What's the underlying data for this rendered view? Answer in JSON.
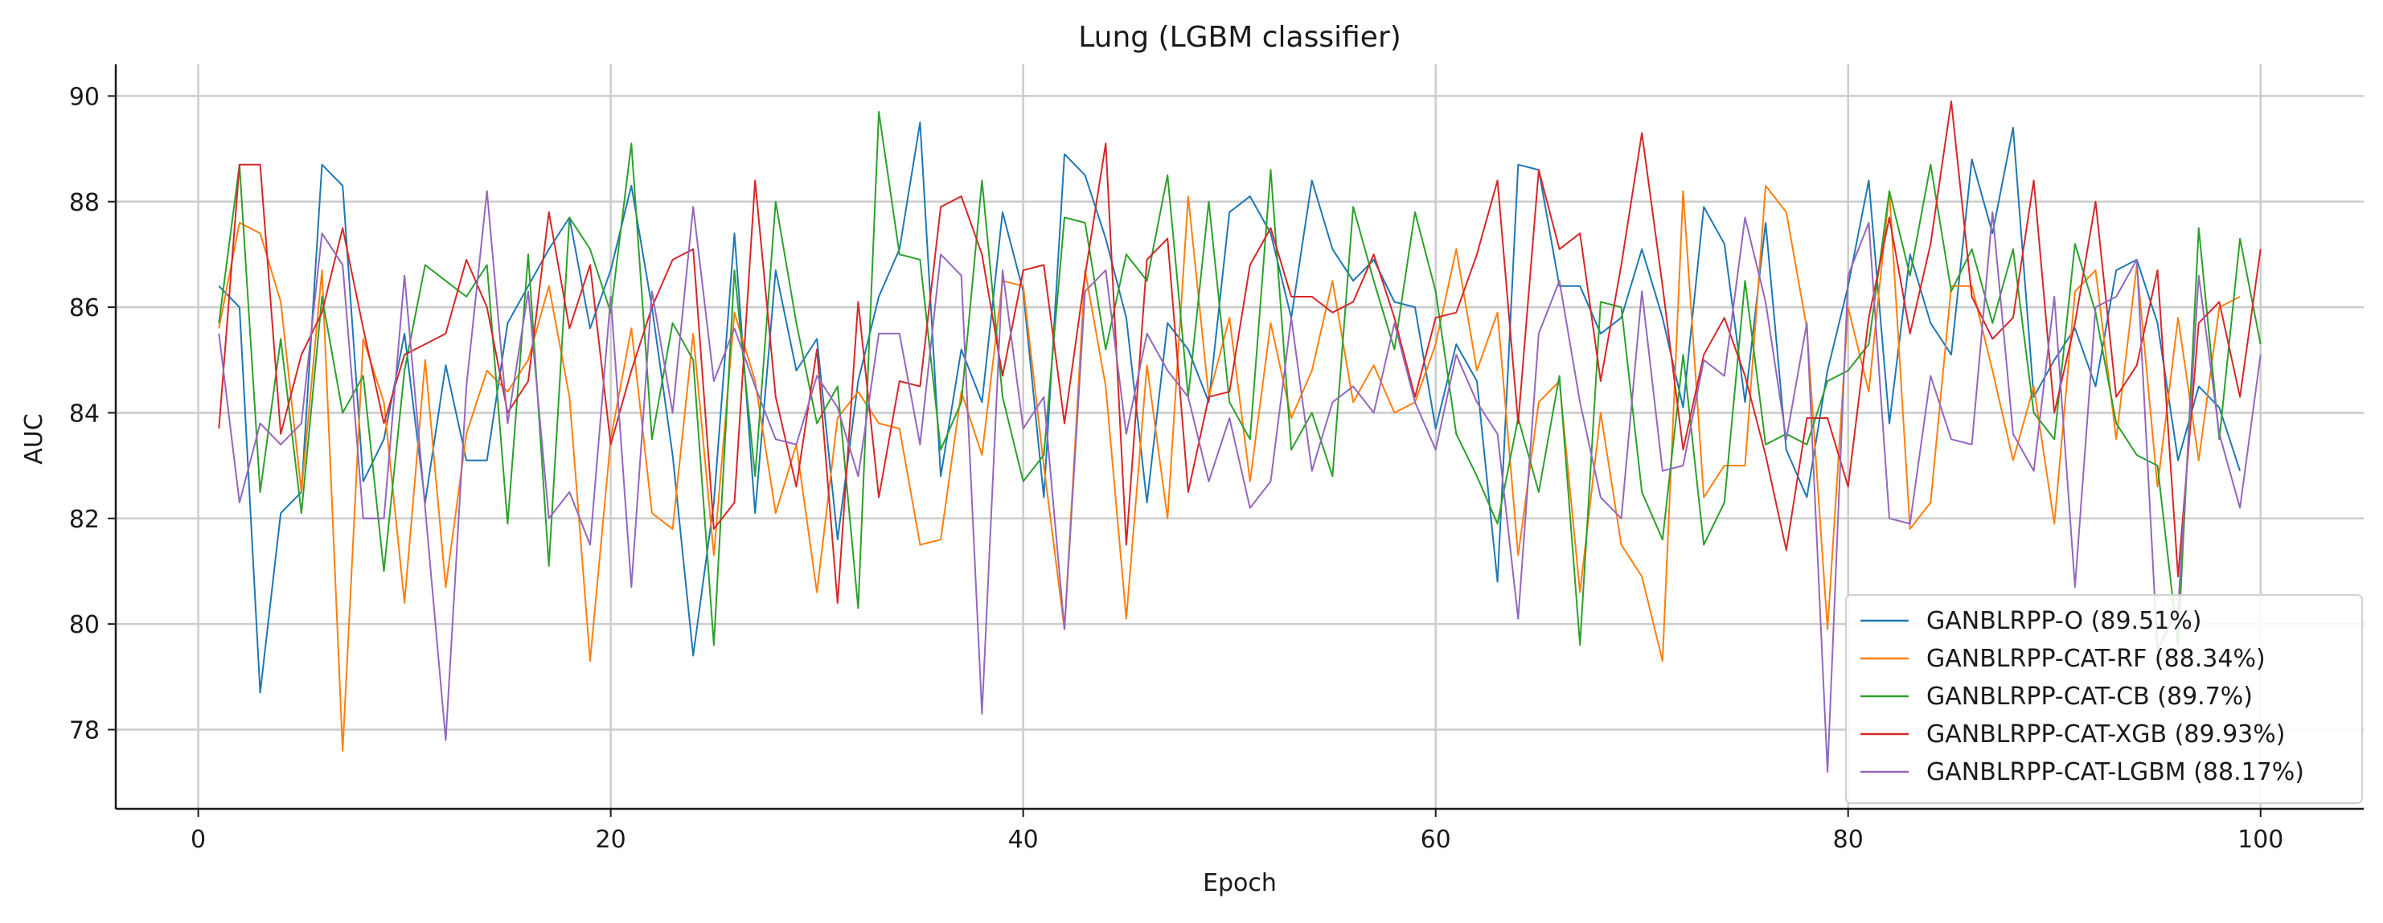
{
  "chart_data": {
    "type": "line",
    "title": "Lung (LGBM classifier)",
    "xlabel": "Epoch",
    "ylabel": "AUC",
    "xlim": [
      -4,
      105
    ],
    "ylim": [
      76.5,
      90.6
    ],
    "xticks": [
      0,
      20,
      40,
      60,
      80,
      100
    ],
    "yticks": [
      78,
      80,
      82,
      84,
      86,
      88,
      90
    ],
    "grid": true,
    "legend_position": "lower-right",
    "x_start": 1,
    "series": [
      {
        "name": "GANBLRPP-O (89.51%)",
        "color": "#1f77b4",
        "values": [
          86.4,
          86.0,
          78.7,
          82.1,
          82.5,
          88.7,
          88.3,
          82.7,
          83.5,
          85.5,
          82.3,
          84.9,
          83.1,
          83.1,
          85.7,
          86.4,
          87.1,
          87.7,
          85.6,
          86.7,
          88.3,
          86.0,
          83.2,
          79.4,
          82.3,
          87.4,
          82.1,
          86.7,
          84.8,
          85.4,
          81.6,
          84.6,
          86.2,
          87.1,
          89.5,
          82.8,
          85.2,
          84.2,
          87.8,
          86.3,
          82.4,
          88.9,
          88.5,
          87.3,
          85.8,
          82.3,
          85.7,
          85.2,
          84.2,
          87.8,
          88.1,
          87.4,
          85.8,
          88.4,
          87.1,
          86.5,
          86.9,
          86.1,
          86.0,
          83.7,
          85.3,
          84.6,
          80.8,
          88.7,
          88.6,
          86.4,
          86.4,
          85.5,
          85.8,
          87.1,
          85.8,
          84.1,
          87.9,
          87.2,
          84.2,
          87.6,
          83.3,
          82.4,
          84.8,
          86.4,
          88.4,
          83.8,
          87.0,
          85.7,
          85.1,
          88.8,
          87.4,
          89.4,
          84.3,
          85.0,
          85.6,
          84.5,
          86.7,
          86.9,
          85.7,
          83.1,
          84.5,
          84.1,
          82.9
        ]
      },
      {
        "name": "GANBLRPP-CAT-RF (88.34%)",
        "color": "#ff7f0e",
        "values": [
          85.6,
          87.6,
          87.4,
          86.1,
          82.5,
          86.7,
          77.6,
          85.4,
          84.2,
          80.4,
          85.0,
          80.7,
          83.6,
          84.8,
          84.4,
          85.0,
          86.4,
          84.3,
          79.3,
          83.5,
          85.6,
          82.1,
          81.8,
          85.5,
          81.3,
          85.9,
          84.6,
          82.1,
          83.4,
          80.6,
          83.9,
          84.4,
          83.8,
          83.7,
          81.5,
          81.6,
          84.4,
          83.2,
          86.5,
          86.4,
          83.0,
          79.9,
          86.7,
          84.5,
          80.1,
          84.9,
          82.0,
          88.1,
          84.3,
          85.8,
          82.7,
          85.7,
          83.9,
          84.8,
          86.5,
          84.2,
          84.9,
          84.0,
          84.2,
          85.3,
          87.1,
          84.8,
          85.9,
          81.3,
          84.2,
          84.6,
          80.6,
          84.0,
          81.5,
          80.9,
          79.3,
          88.2,
          82.4,
          83.0,
          83.0,
          88.3,
          87.8,
          85.6,
          79.9,
          86.0,
          84.4,
          88.2,
          81.8,
          82.3,
          86.4,
          86.4,
          84.8,
          83.1,
          84.5,
          81.9,
          86.3,
          86.7,
          83.5,
          86.8,
          82.6,
          85.8,
          83.1,
          86.0,
          86.2
        ]
      },
      {
        "name": "GANBLRPP-CAT-CB (89.7%)",
        "color": "#2ca02c",
        "values": [
          85.7,
          88.7,
          82.5,
          85.4,
          82.1,
          86.2,
          84.0,
          84.7,
          81.0,
          84.8,
          86.8,
          86.5,
          86.2,
          86.8,
          81.9,
          87.0,
          81.1,
          87.7,
          87.1,
          85.9,
          89.1,
          83.5,
          85.7,
          85.0,
          79.6,
          86.7,
          82.8,
          88.0,
          85.7,
          83.8,
          84.5,
          80.3,
          89.7,
          87.0,
          86.9,
          83.3,
          84.2,
          88.4,
          84.3,
          82.7,
          83.2,
          87.7,
          87.6,
          85.2,
          87.0,
          86.5,
          88.5,
          84.3,
          88.0,
          84.2,
          83.5,
          88.6,
          83.3,
          84.0,
          82.8,
          87.9,
          86.5,
          85.2,
          87.8,
          86.3,
          83.6,
          82.8,
          81.9,
          83.9,
          82.5,
          84.7,
          79.6,
          86.1,
          86.0,
          82.5,
          81.6,
          85.1,
          81.5,
          82.3,
          86.5,
          83.4,
          83.6,
          83.4,
          84.6,
          84.8,
          85.3,
          88.2,
          86.6,
          88.7,
          86.3,
          87.1,
          85.7,
          87.1,
          84.0,
          83.5,
          87.2,
          85.9,
          83.8,
          83.2,
          83.0,
          79.6,
          87.5,
          83.5,
          87.3,
          85.3
        ]
      },
      {
        "name": "GANBLRPP-CAT-XGB (89.93%)",
        "color": "#d62728",
        "values": [
          83.7,
          88.7,
          88.7,
          83.6,
          85.1,
          85.9,
          87.5,
          85.6,
          83.8,
          85.1,
          85.3,
          85.5,
          86.9,
          86.0,
          84.0,
          84.6,
          87.8,
          85.6,
          86.8,
          83.4,
          84.8,
          86.0,
          86.9,
          87.1,
          81.8,
          82.3,
          88.4,
          84.3,
          82.6,
          85.2,
          80.4,
          86.1,
          82.4,
          84.6,
          84.5,
          87.9,
          88.1,
          87.0,
          84.7,
          86.7,
          86.8,
          83.8,
          86.6,
          89.1,
          81.5,
          86.9,
          87.3,
          82.5,
          84.3,
          84.4,
          86.8,
          87.5,
          86.2,
          86.2,
          85.9,
          86.1,
          87.0,
          85.8,
          84.3,
          85.8,
          85.9,
          87.0,
          88.4,
          83.8,
          88.6,
          87.1,
          87.4,
          84.6,
          86.8,
          89.3,
          86.4,
          83.3,
          85.1,
          85.8,
          84.7,
          83.2,
          81.4,
          83.9,
          83.9,
          82.6,
          85.8,
          87.7,
          85.5,
          87.2,
          89.9,
          86.2,
          85.4,
          85.8,
          88.4,
          84.0,
          85.7,
          88.0,
          84.3,
          84.9,
          86.7,
          80.9,
          85.7,
          86.1,
          84.3,
          87.1
        ]
      },
      {
        "name": "GANBLRPP-CAT-LGBM (88.17%)",
        "color": "#9467bd",
        "values": [
          85.5,
          82.3,
          83.8,
          83.4,
          83.8,
          87.4,
          86.8,
          82.0,
          82.0,
          86.6,
          82.2,
          77.8,
          84.5,
          88.2,
          83.8,
          86.3,
          82.0,
          82.5,
          81.5,
          86.2,
          80.7,
          86.3,
          84.0,
          87.9,
          84.6,
          85.6,
          84.5,
          83.5,
          83.4,
          84.7,
          84.1,
          82.8,
          85.5,
          85.5,
          83.4,
          87.0,
          86.6,
          78.3,
          86.7,
          83.7,
          84.3,
          79.9,
          86.3,
          86.7,
          83.6,
          85.5,
          84.8,
          84.3,
          82.7,
          83.9,
          82.2,
          82.7,
          85.8,
          82.9,
          84.2,
          84.5,
          84.0,
          85.7,
          84.2,
          83.3,
          85.1,
          84.2,
          83.6,
          80.1,
          85.5,
          86.5,
          84.2,
          82.4,
          82.0,
          86.3,
          82.9,
          83.0,
          85.0,
          84.7,
          87.7,
          86.1,
          83.5,
          85.7,
          77.2,
          86.6,
          87.6,
          82.0,
          81.9,
          84.7,
          83.5,
          83.4,
          87.8,
          83.6,
          82.9,
          86.2,
          80.7,
          86.0,
          86.2,
          86.9,
          79.5,
          80.3,
          86.6,
          83.6,
          82.2,
          85.1
        ]
      }
    ]
  }
}
